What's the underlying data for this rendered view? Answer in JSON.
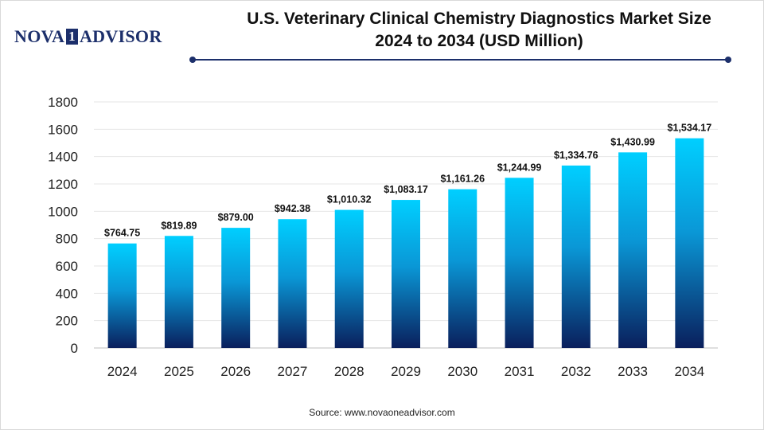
{
  "brand": {
    "logo_left": "NOVA",
    "logo_box": "1",
    "logo_right": "ADVISOR",
    "color": "#1c2f6b"
  },
  "header": {
    "title_line1": "U.S. Veterinary Clinical Chemistry Diagnostics Market Size",
    "title_line2": "2024 to 2034 (USD Million)"
  },
  "footer": {
    "source": "Source: www.novaoneadvisor.com"
  },
  "chart_data": {
    "type": "bar",
    "title": "U.S. Veterinary Clinical Chemistry Diagnostics Market Size 2024 to 2034 (USD Million)",
    "xlabel": "",
    "ylabel": "",
    "categories": [
      "2024",
      "2025",
      "2026",
      "2027",
      "2028",
      "2029",
      "2030",
      "2031",
      "2032",
      "2033",
      "2034"
    ],
    "values": [
      764.75,
      819.89,
      879.0,
      942.38,
      1010.32,
      1083.17,
      1161.26,
      1244.99,
      1334.76,
      1430.99,
      1534.17
    ],
    "data_labels": [
      "$764.75",
      "$819.89",
      "$879.00",
      "$942.38",
      "$1,010.32",
      "$1,083.17",
      "$1,161.26",
      "$1,244.99",
      "$1,334.76",
      "$1,430.99",
      "$1,534.17"
    ],
    "yticks": [
      0,
      200,
      400,
      600,
      800,
      1000,
      1200,
      1400,
      1600,
      1800
    ],
    "ylim": [
      0,
      1800
    ],
    "grid": true,
    "legend": "none",
    "colors": {
      "bar_top": "#00cfff",
      "bar_bottom": "#0a1f5c",
      "grid": "#e6e6e6"
    }
  }
}
